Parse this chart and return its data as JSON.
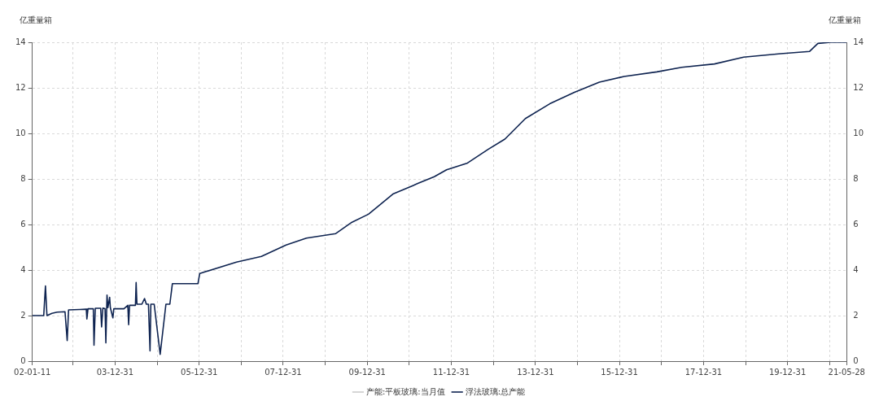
{
  "chart_data": {
    "type": "line",
    "ylabel": "亿重量箱",
    "y2label": "亿重量箱",
    "xlim": [
      "2002-01-11",
      "2021-05-28"
    ],
    "xticks": [
      {
        "value": "2002-01-11",
        "label": "02-01-11"
      },
      {
        "value": "2002-12-31",
        "label": null
      },
      {
        "value": "2003-12-31",
        "label": "03-12-31"
      },
      {
        "value": "2004-12-31",
        "label": null
      },
      {
        "value": "2005-12-31",
        "label": "05-12-31"
      },
      {
        "value": "2006-12-31",
        "label": null
      },
      {
        "value": "2007-12-31",
        "label": "07-12-31"
      },
      {
        "value": "2008-12-31",
        "label": null
      },
      {
        "value": "2009-12-31",
        "label": "09-12-31"
      },
      {
        "value": "2010-12-31",
        "label": null
      },
      {
        "value": "2011-12-31",
        "label": "11-12-31"
      },
      {
        "value": "2012-12-31",
        "label": null
      },
      {
        "value": "2013-12-31",
        "label": "13-12-31"
      },
      {
        "value": "2014-12-31",
        "label": null
      },
      {
        "value": "2015-12-31",
        "label": "15-12-31"
      },
      {
        "value": "2016-12-31",
        "label": null
      },
      {
        "value": "2017-12-31",
        "label": "17-12-31"
      },
      {
        "value": "2018-12-31",
        "label": null
      },
      {
        "value": "2019-12-31",
        "label": "19-12-31"
      },
      {
        "value": "2020-12-31",
        "label": null
      },
      {
        "value": "2021-05-28",
        "label": "21-05-28"
      }
    ],
    "ylim": [
      0,
      14
    ],
    "yticks": [
      0,
      2,
      4,
      6,
      8,
      10,
      12,
      14
    ],
    "y2lim": [
      0,
      14
    ],
    "y2ticks": [
      0,
      2,
      4,
      6,
      8,
      10,
      12,
      14
    ],
    "grid": true,
    "legend": "bottom",
    "marker": "none",
    "line_style": "solid",
    "series": [
      {
        "name": "产能:平板玻璃:当月值",
        "color": "#cccccc"
      },
      {
        "name": "浮法玻璃:总产能",
        "color": "#0e2350",
        "x": [
          "2002-01-11",
          "2002-04-20",
          "2002-05-05",
          "2002-05-18",
          "2002-06-30",
          "2002-08-15",
          "2002-10-22",
          "2002-11-10",
          "2002-11-22",
          "2003-03-01",
          "2003-04-25",
          "2003-04-30",
          "2003-05-10",
          "2003-06-25",
          "2003-07-01",
          "2003-07-12",
          "2003-08-28",
          "2003-09-05",
          "2003-09-16",
          "2003-10-05",
          "2003-10-12",
          "2003-10-22",
          "2003-10-30",
          "2003-11-14",
          "2003-11-20",
          "2003-12-12",
          "2003-12-20",
          "2004-03-17",
          "2004-04-20",
          "2004-04-27",
          "2004-05-05",
          "2004-06-25",
          "2004-07-01",
          "2004-07-08",
          "2004-08-20",
          "2004-09-12",
          "2004-09-28",
          "2004-10-16",
          "2004-10-30",
          "2004-11-06",
          "2004-12-05",
          "2005-01-26",
          "2005-03-17",
          "2005-04-20",
          "2005-05-12",
          "2005-12-20",
          "2006-01-05",
          "2006-11-20",
          "2007-06-25",
          "2008-01-25",
          "2008-07-20",
          "2009-04-01",
          "2009-08-20",
          "2010-01-10",
          "2010-08-15",
          "2011-03-15",
          "2011-08-05",
          "2011-11-20",
          "2012-05-20",
          "2012-11-15",
          "2013-04-10",
          "2013-10-05",
          "2014-05-05",
          "2014-12-05",
          "2015-07-10",
          "2016-02-10",
          "2016-11-20",
          "2017-06-25",
          "2018-04-05",
          "2018-12-15",
          "2019-11-01",
          "2020-07-10",
          "2020-09-20",
          "2021-01-05",
          "2021-05-28"
        ],
        "values": [
          2.0,
          2.0,
          3.3,
          2.0,
          2.1,
          2.15,
          2.17,
          0.9,
          2.25,
          2.27,
          2.28,
          1.85,
          2.3,
          2.3,
          0.7,
          2.32,
          2.32,
          1.5,
          2.33,
          2.3,
          0.8,
          2.9,
          2.35,
          2.8,
          2.35,
          1.9,
          2.3,
          2.3,
          2.45,
          1.6,
          2.45,
          2.45,
          3.45,
          2.5,
          2.5,
          2.75,
          2.5,
          2.5,
          0.45,
          2.5,
          2.5,
          0.3,
          2.5,
          2.5,
          3.4,
          3.4,
          3.85,
          4.35,
          4.6,
          5.1,
          5.4,
          5.6,
          6.1,
          6.45,
          7.35,
          7.8,
          8.1,
          8.4,
          8.7,
          9.3,
          9.75,
          10.65,
          11.3,
          11.8,
          12.25,
          12.5,
          12.7,
          12.9,
          13.05,
          13.35,
          13.5,
          13.6,
          13.95,
          14.0,
          14.0
        ]
      }
    ]
  }
}
